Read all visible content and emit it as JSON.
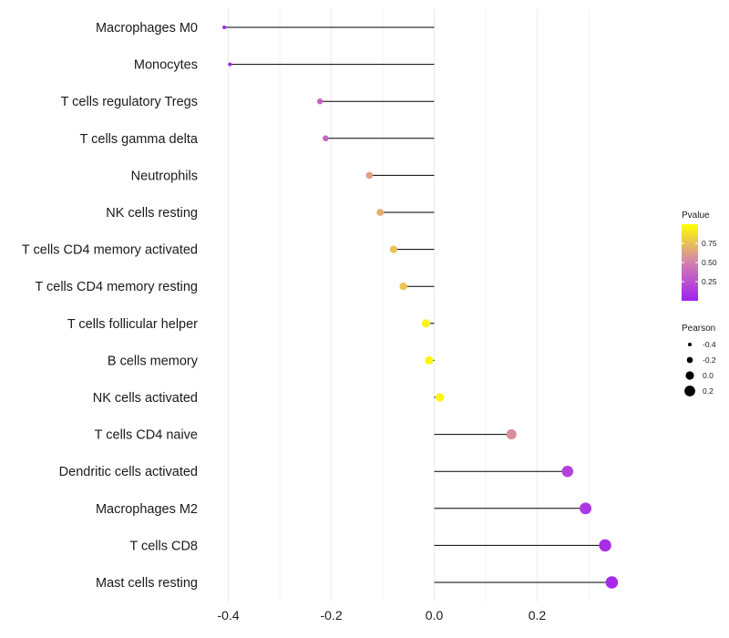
{
  "chart_data": {
    "type": "lollipop",
    "title": "",
    "xlabel": "",
    "ylabel": "",
    "xlim": [
      -0.44,
      0.47
    ],
    "x_ticks": [
      -0.4,
      -0.2,
      0.0,
      0.2
    ],
    "x_tick_labels": [
      "-0.4",
      "-0.2",
      "0.0",
      "0.2"
    ],
    "grid": true,
    "categories": [
      "Macrophages M0",
      "Monocytes",
      "T cells regulatory  Tregs",
      "T cells gamma delta",
      "Neutrophils",
      "NK cells resting",
      "T cells CD4 memory activated",
      "T cells CD4 memory resting",
      "T cells follicular helper",
      "B cells memory",
      "NK cells activated",
      "T cells CD4 naive",
      "Dendritic cells activated",
      "Macrophages M2",
      "T cells CD8",
      "Mast cells resting"
    ],
    "pearson": [
      -0.408,
      -0.397,
      -0.222,
      -0.211,
      -0.126,
      -0.105,
      -0.079,
      -0.06,
      -0.016,
      -0.01,
      0.011,
      0.15,
      0.259,
      0.294,
      0.332,
      0.345
    ],
    "pvalue": [
      0.02,
      0.03,
      0.35,
      0.37,
      0.62,
      0.68,
      0.75,
      0.77,
      0.95,
      0.97,
      0.96,
      0.55,
      0.17,
      0.12,
      0.07,
      0.05
    ],
    "legend_color": {
      "title": "Pvalue",
      "ticks": [
        0.25,
        0.5,
        0.75
      ],
      "tick_labels": [
        "0.25",
        "0.50",
        "0.75"
      ],
      "range": [
        0.0,
        1.0
      ],
      "low_color": "#a020f0",
      "mid_color": "#d580b0",
      "high_color": "#ffff00"
    },
    "legend_size": {
      "title": "Pearson",
      "values": [
        -0.4,
        -0.2,
        0.0,
        0.2
      ],
      "labels": [
        "-0.4",
        "-0.2",
        "0.0",
        "0.2"
      ]
    },
    "legend_position": "right"
  }
}
